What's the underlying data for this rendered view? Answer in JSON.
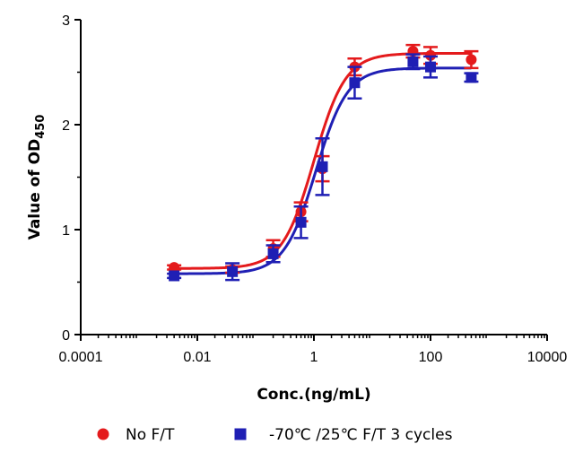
{
  "chart_data": {
    "type": "scatter",
    "title": "",
    "xlabel": "Conc.(ng/mL)",
    "ylabel": "Value of OD",
    "ylabel_sub": "450",
    "x_scale": "log",
    "xlim": [
      0.0001,
      10000
    ],
    "ylim": [
      0,
      3
    ],
    "x_ticks": [
      0.0001,
      0.01,
      1,
      100,
      10000
    ],
    "x_tick_labels": [
      "0.0001",
      "0.01",
      "1",
      "100",
      "10000"
    ],
    "y_ticks": [
      0,
      1,
      2,
      3
    ],
    "y_tick_labels": [
      "0",
      "1",
      "2",
      "3"
    ],
    "grid": false,
    "legend_position": "bottom",
    "series": [
      {
        "name": "No F/T",
        "color": "#e41a1c",
        "marker": "circle",
        "x": [
          0.004,
          0.04,
          0.2,
          0.6,
          1.4,
          5,
          50,
          100,
          500
        ],
        "y": [
          0.64,
          0.62,
          0.82,
          1.17,
          1.58,
          2.55,
          2.7,
          2.66,
          2.62
        ],
        "err": [
          0.02,
          0.03,
          0.08,
          0.09,
          0.12,
          0.08,
          0.06,
          0.08,
          0.08
        ],
        "fit": {
          "bottom": 0.63,
          "top": 2.68,
          "ec50": 1.0,
          "hill": 1.6
        }
      },
      {
        "name": "-70℃ /25℃  F/T 3 cycles",
        "color": "#1f1fb4",
        "marker": "square",
        "x": [
          0.004,
          0.04,
          0.2,
          0.6,
          1.4,
          5,
          50,
          100,
          500
        ],
        "y": [
          0.56,
          0.6,
          0.77,
          1.07,
          1.6,
          2.4,
          2.6,
          2.55,
          2.45
        ],
        "err": [
          0.02,
          0.08,
          0.08,
          0.15,
          0.27,
          0.15,
          0.07,
          0.1,
          0.04
        ],
        "fit": {
          "bottom": 0.58,
          "top": 2.54,
          "ec50": 1.08,
          "hill": 1.6
        }
      }
    ]
  }
}
